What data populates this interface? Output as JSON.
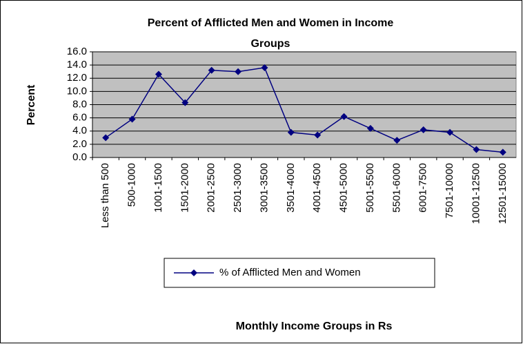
{
  "chart_data": {
    "type": "line",
    "title": [
      "Percent of Afflicted Men and Women in Income",
      "Groups"
    ],
    "y_label": "Percent",
    "x_label": "Monthly Income Groups in Rs",
    "categories": [
      "Less than 500",
      "500-1000",
      "1001-1500",
      "1501-2000",
      "2001-2500",
      "2501-3000",
      "3001-3500",
      "3501-4000",
      "4001-4500",
      "4501-5000",
      "5001-5500",
      "5501-6000",
      "6001-7500",
      "7501-10000",
      "10001-12500",
      "12501-15000"
    ],
    "series": [
      {
        "name": "% of Afflicted Men and Women",
        "color": "#000080",
        "values": [
          3.0,
          5.8,
          12.6,
          8.3,
          13.2,
          13.0,
          13.6,
          3.8,
          3.4,
          6.2,
          4.4,
          2.6,
          4.2,
          3.8,
          1.2,
          0.8
        ]
      }
    ],
    "ylim": [
      0,
      16
    ],
    "yticks": [
      {
        "value": 0,
        "label": "0.0"
      },
      {
        "value": 2,
        "label": "2.0"
      },
      {
        "value": 4,
        "label": "4.0"
      },
      {
        "value": 6,
        "label": "6.0"
      },
      {
        "value": 8,
        "label": "8.0"
      },
      {
        "value": 10,
        "label": "10.0"
      },
      {
        "value": 12,
        "label": "12.0"
      },
      {
        "value": 14,
        "label": "14.0"
      },
      {
        "value": 16,
        "label": "16.0"
      }
    ],
    "grid": true,
    "plot_background": "#c0c0c0",
    "legend": "bottom"
  }
}
